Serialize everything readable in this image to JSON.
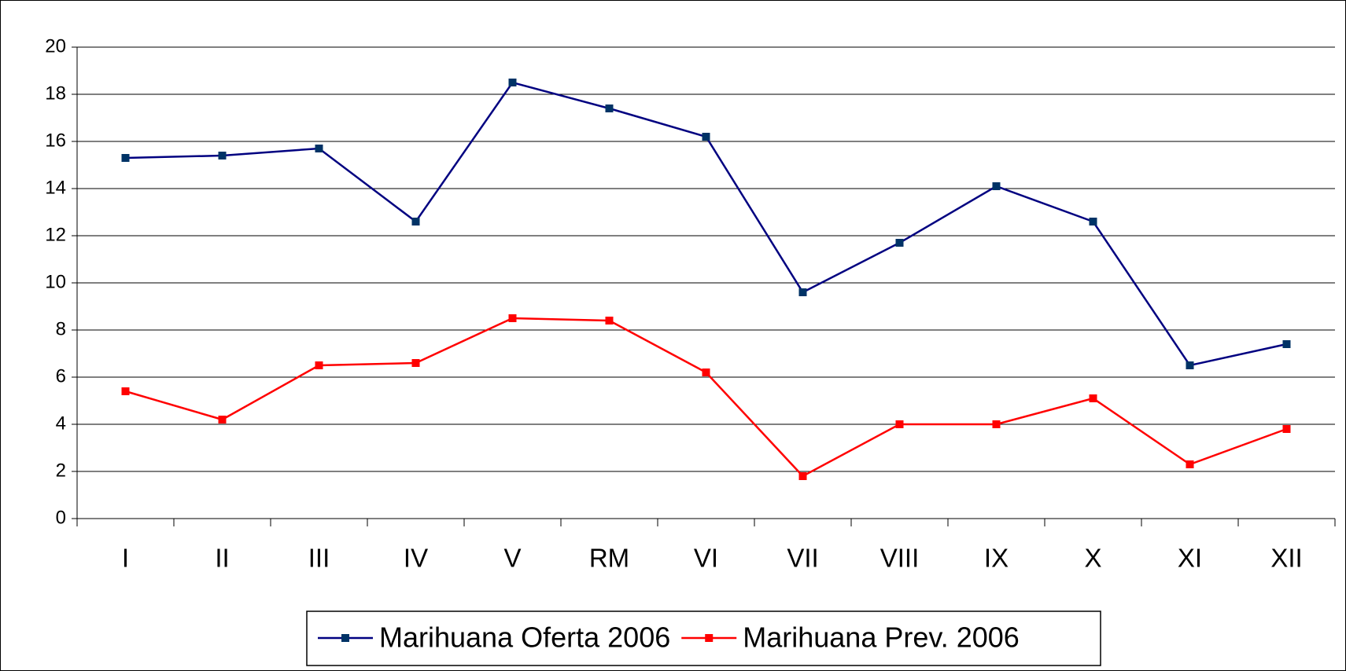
{
  "chart_data": {
    "type": "line",
    "categories": [
      "I",
      "II",
      "III",
      "IV",
      "V",
      "RM",
      "VI",
      "VII",
      "VIII",
      "IX",
      "X",
      "XI",
      "XII"
    ],
    "series": [
      {
        "name": "Marihuana Oferta 2006",
        "color": "#000080",
        "marker_color": "#003366",
        "values": [
          15.3,
          15.4,
          15.7,
          12.6,
          18.5,
          17.4,
          16.2,
          9.6,
          11.7,
          14.1,
          12.6,
          6.5,
          7.4
        ]
      },
      {
        "name": "Marihuana Prev. 2006",
        "color": "#ff0000",
        "marker_color": "#ff0000",
        "values": [
          5.4,
          4.2,
          6.5,
          6.6,
          8.5,
          8.4,
          6.2,
          1.8,
          4.0,
          4.0,
          5.1,
          2.3,
          3.8
        ]
      }
    ],
    "ylim": [
      0,
      20
    ],
    "yticks": [
      0,
      2,
      4,
      6,
      8,
      10,
      12,
      14,
      16,
      18,
      20
    ],
    "grid": true,
    "legend": "bottom"
  }
}
